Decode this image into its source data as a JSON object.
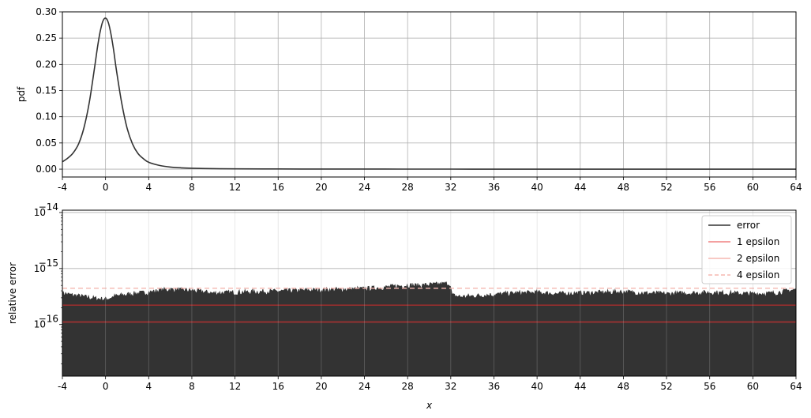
{
  "chart_data": [
    {
      "type": "line",
      "ylabel": "pdf",
      "xlabel": "",
      "xlim": [
        -4,
        64
      ],
      "ylim": [
        -0.015,
        0.3
      ],
      "xticks": [
        "-4",
        "0",
        "4",
        "8",
        "12",
        "16",
        "20",
        "24",
        "28",
        "32",
        "36",
        "40",
        "44",
        "48",
        "52",
        "56",
        "60",
        "64"
      ],
      "yticks": [
        "0.00",
        "0.05",
        "0.10",
        "0.15",
        "0.20",
        "0.25",
        "0.30"
      ],
      "grid": true,
      "series": [
        {
          "color": "#333333",
          "x": [
            -4,
            -3.5,
            -3,
            -2.5,
            -2,
            -1.5,
            -1,
            -0.75,
            -0.5,
            -0.25,
            0,
            0.25,
            0.5,
            0.75,
            1,
            1.5,
            2,
            2.5,
            3,
            3.5,
            4,
            5,
            6,
            7,
            8,
            10,
            12,
            16,
            20,
            24,
            28,
            32,
            36,
            40,
            44,
            48,
            52,
            56,
            60,
            64
          ],
          "y": [
            0.014,
            0.021,
            0.031,
            0.048,
            0.079,
            0.128,
            0.196,
            0.232,
            0.262,
            0.282,
            0.288,
            0.28,
            0.258,
            0.227,
            0.19,
            0.126,
            0.078,
            0.048,
            0.03,
            0.02,
            0.013,
            0.007,
            0.004,
            0.0025,
            0.0017,
            0.0009,
            0.0006,
            0.0003,
            0.0002,
            0.00012,
            8e-05,
            6e-05,
            4e-05,
            3e-05,
            2e-05,
            2e-05,
            1e-05,
            1e-05,
            1e-05,
            1e-05
          ]
        }
      ]
    },
    {
      "type": "area",
      "ylabel": "relative error",
      "xlabel": "x",
      "xlim": [
        -4,
        64
      ],
      "ylim": [
        1.2e-17,
        1.1e-14
      ],
      "yscale": "log",
      "xticks": [
        "-4",
        "0",
        "4",
        "8",
        "12",
        "16",
        "20",
        "24",
        "28",
        "32",
        "36",
        "40",
        "44",
        "48",
        "52",
        "56",
        "60",
        "64"
      ],
      "yticks": [
        {
          "value": 1e-14,
          "mantissa": "10",
          "exp": "−14"
        },
        {
          "value": 1e-15,
          "mantissa": "10",
          "exp": "−15"
        },
        {
          "value": 1e-16,
          "mantissa": "10",
          "exp": "−16"
        }
      ],
      "grid": true,
      "legend_position": "top-right",
      "series": [
        {
          "name": "error",
          "color": "#333333",
          "x": [
            -4,
            -3,
            -2,
            -1,
            0,
            1,
            2,
            3,
            4,
            5,
            6,
            7,
            8,
            9,
            10,
            12,
            14,
            16,
            18,
            20,
            22,
            24,
            26,
            27,
            28,
            29,
            30,
            31,
            31.9,
            32.1,
            33,
            34,
            36,
            38,
            40,
            42,
            44,
            46,
            48,
            50,
            52,
            54,
            56,
            58,
            60,
            62,
            64
          ],
          "y": [
            3.6e-16,
            3.3e-16,
            3.1e-16,
            2.9e-16,
            2.8e-16,
            3.2e-16,
            3.4e-16,
            3.6e-16,
            3.7e-16,
            4e-16,
            4.2e-16,
            4.1e-16,
            4e-16,
            3.8e-16,
            3.6e-16,
            3.7e-16,
            3.8e-16,
            3.9e-16,
            4e-16,
            4.1e-16,
            4.2e-16,
            4.3e-16,
            4.6e-16,
            4.8e-16,
            5e-16,
            4.9e-16,
            5.1e-16,
            5.2e-16,
            5.4e-16,
            3.3e-16,
            3.1e-16,
            3.2e-16,
            3.4e-16,
            3.6e-16,
            3.7e-16,
            3.5e-16,
            3.6e-16,
            3.7e-16,
            3.8e-16,
            3.6e-16,
            3.5e-16,
            3.6e-16,
            3.7e-16,
            3.6e-16,
            3.5e-16,
            3.6e-16,
            4.2e-16
          ]
        },
        {
          "name": "1 epsilon",
          "color": "#f08080",
          "value": 1.11e-16,
          "dash": "solid"
        },
        {
          "name": "2 epsilon",
          "color": "#f5b7b1",
          "value": 2.22e-16,
          "dash": "solid"
        },
        {
          "name": "4 epsilon",
          "color": "#f5b7b1",
          "value": 4.44e-16,
          "dash": "dashed"
        }
      ]
    }
  ]
}
